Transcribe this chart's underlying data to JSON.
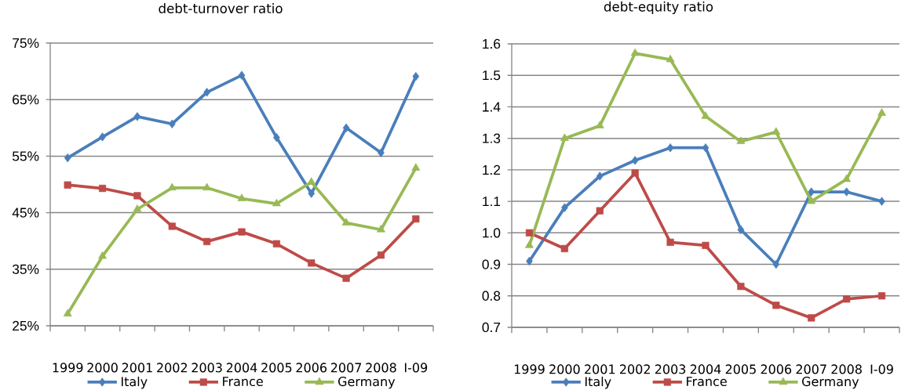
{
  "chart_data": [
    {
      "type": "line",
      "title": "debt-turnover ratio",
      "categories": [
        "1999",
        "2000",
        "2001",
        "2002",
        "2003",
        "2004",
        "2005",
        "2006",
        "2007",
        "2008",
        "I-09"
      ],
      "series": [
        {
          "name": "Italy",
          "color": "#4a7ebb",
          "marker": "diamond",
          "values": [
            54.7,
            58.4,
            62.0,
            60.7,
            66.3,
            69.3,
            58.3,
            48.4,
            60.0,
            55.6,
            69.1
          ]
        },
        {
          "name": "France",
          "color": "#be4b48",
          "marker": "square",
          "values": [
            49.9,
            49.3,
            48.0,
            42.6,
            39.9,
            41.6,
            39.5,
            36.1,
            33.4,
            37.5,
            43.9
          ]
        },
        {
          "name": "Germany",
          "color": "#98b954",
          "marker": "triangle",
          "values": [
            27.1,
            37.3,
            45.6,
            49.4,
            49.4,
            47.5,
            46.6,
            50.4,
            43.2,
            42.0,
            52.9
          ]
        }
      ],
      "ylim": [
        25,
        75
      ],
      "yticks": [
        {
          "value": 25,
          "label": "25%"
        },
        {
          "value": 35,
          "label": "35%"
        },
        {
          "value": 45,
          "label": "45%"
        },
        {
          "value": 55,
          "label": "55%"
        },
        {
          "value": 65,
          "label": "65%"
        },
        {
          "value": 75,
          "label": "75%"
        }
      ],
      "grid": "y",
      "legend": "bottom",
      "line_style": "solid"
    },
    {
      "type": "line",
      "title": "debt-equity ratio",
      "categories": [
        "1999",
        "2000",
        "2001",
        "2002",
        "2003",
        "2004",
        "2005",
        "2006",
        "2007",
        "2008",
        "I-09"
      ],
      "series": [
        {
          "name": "Italy",
          "color": "#4a7ebb",
          "marker": "diamond",
          "values": [
            0.91,
            1.08,
            1.18,
            1.23,
            1.27,
            1.27,
            1.01,
            0.9,
            1.13,
            1.13,
            1.1
          ]
        },
        {
          "name": "France",
          "color": "#be4b48",
          "marker": "square",
          "values": [
            1.0,
            0.95,
            1.07,
            1.19,
            0.97,
            0.96,
            0.83,
            0.77,
            0.73,
            0.79,
            0.8
          ]
        },
        {
          "name": "Germany",
          "color": "#98b954",
          "marker": "triangle",
          "values": [
            0.96,
            1.3,
            1.34,
            1.57,
            1.55,
            1.37,
            1.29,
            1.32,
            1.1,
            1.17,
            1.38
          ]
        }
      ],
      "ylim": [
        0.7,
        1.6
      ],
      "yticks": [
        0.7,
        0.8,
        0.9,
        {
          "value": 1.0,
          "label": "1.0"
        },
        1.1,
        1.2,
        1.3,
        1.4,
        1.5,
        1.6
      ],
      "grid": "y",
      "legend": "bottom",
      "line_style": "solid"
    }
  ]
}
